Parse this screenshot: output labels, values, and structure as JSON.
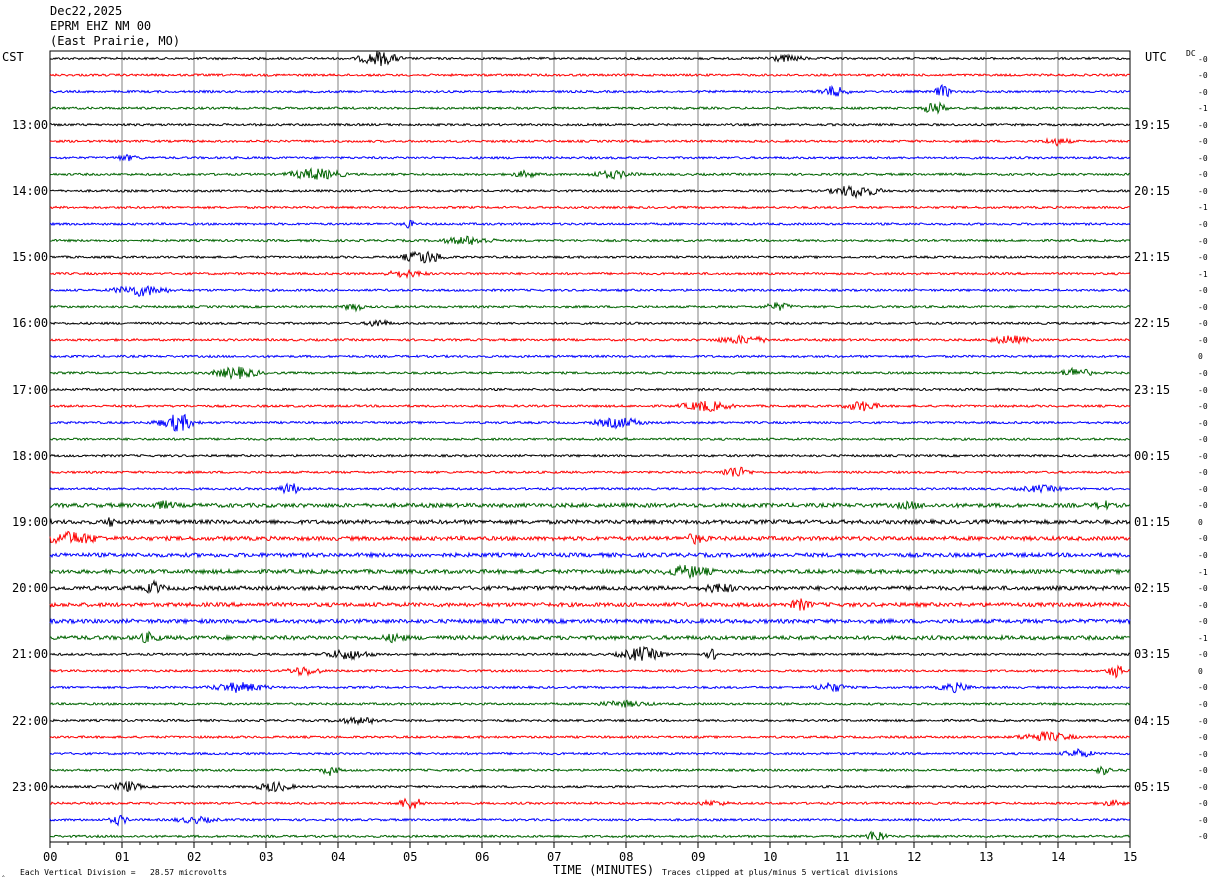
{
  "header": {
    "date": "Dec22,2025",
    "station": "EPRM EHZ NM 00",
    "location": "(East Prairie, MO)"
  },
  "left_tz": "CST",
  "right_tz": "UTC",
  "dc_label": "DC",
  "footer": {
    "scale_note": "Each Vertical Division =   28.57 microvolts",
    "xlabel": "TIME (MINUTES)",
    "clip_note": "Traces clipped at plus/minus 5 vertical divisions"
  },
  "chart_data": {
    "type": "line",
    "title": "EPRM EHZ NM 00",
    "xlabel": "TIME (MINUTES)",
    "x_ticks": [
      "00",
      "01",
      "02",
      "03",
      "04",
      "05",
      "06",
      "07",
      "08",
      "09",
      "10",
      "11",
      "12",
      "13",
      "14",
      "15"
    ],
    "xlim": [
      0,
      15
    ],
    "trace_count": 48,
    "trace_colors": [
      "#000000",
      "#ff0000",
      "#0000ff",
      "#006400"
    ],
    "left_hour_labels": [
      "13:00",
      "14:00",
      "15:00",
      "16:00",
      "17:00",
      "18:00",
      "19:00",
      "20:00",
      "21:00",
      "22:00",
      "23:00"
    ],
    "right_hour_labels": [
      "19:15",
      "20:15",
      "21:15",
      "22:15",
      "23:15",
      "00:15",
      "01:15",
      "02:15",
      "03:15",
      "04:15",
      "05:15"
    ],
    "dc_offsets": [
      "-0",
      "-0",
      "-0",
      "-1",
      "-0",
      "-0",
      "-0",
      "-0",
      "-0",
      "-1",
      "-0",
      "-0",
      "-0",
      "-1",
      "-0",
      "-0",
      "-0",
      "-0",
      "0",
      "-0",
      "-0",
      "-0",
      "-0",
      "-0",
      "-0",
      "-0",
      "-0",
      "-0",
      "0",
      "-0",
      "-0",
      "-1",
      "-0",
      "-0",
      "-0",
      "-1",
      "-0",
      "0",
      "-0",
      "-0",
      "-0",
      "-0",
      "-0",
      "-0",
      "-0",
      "-0",
      "-0",
      "-0"
    ]
  }
}
